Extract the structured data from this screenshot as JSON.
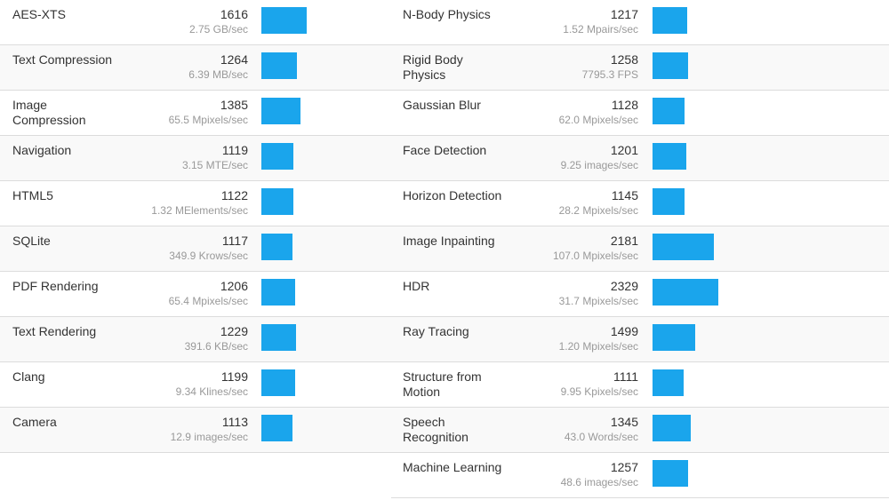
{
  "theme": {
    "bar_color": "#1aa5ec",
    "row_alt": "#f9f9f9",
    "divider": "#dcdcdc"
  },
  "bar_scale": {
    "max_score": 2329
  },
  "left_rows": [
    {
      "name": "AES-XTS",
      "score": "1616",
      "unit": "2.75 GB/sec"
    },
    {
      "name": "Text Compression",
      "score": "1264",
      "unit": "6.39 MB/sec"
    },
    {
      "name": "Image\nCompression",
      "score": "1385",
      "unit": "65.5 Mpixels/sec"
    },
    {
      "name": "Navigation",
      "score": "1119",
      "unit": "3.15 MTE/sec"
    },
    {
      "name": "HTML5",
      "score": "1122",
      "unit": "1.32 MElements/sec"
    },
    {
      "name": "SQLite",
      "score": "1117",
      "unit": "349.9 Krows/sec"
    },
    {
      "name": "PDF Rendering",
      "score": "1206",
      "unit": "65.4 Mpixels/sec"
    },
    {
      "name": "Text Rendering",
      "score": "1229",
      "unit": "391.6 KB/sec"
    },
    {
      "name": "Clang",
      "score": "1199",
      "unit": "9.34 Klines/sec"
    },
    {
      "name": "Camera",
      "score": "1113",
      "unit": "12.9 images/sec"
    }
  ],
  "right_rows": [
    {
      "name": "N-Body Physics",
      "score": "1217",
      "unit": "1.52 Mpairs/sec"
    },
    {
      "name": "Rigid Body\nPhysics",
      "score": "1258",
      "unit": "7795.3 FPS"
    },
    {
      "name": "Gaussian Blur",
      "score": "1128",
      "unit": "62.0 Mpixels/sec"
    },
    {
      "name": "Face Detection",
      "score": "1201",
      "unit": "9.25 images/sec"
    },
    {
      "name": "Horizon Detection",
      "score": "1145",
      "unit": "28.2 Mpixels/sec"
    },
    {
      "name": "Image Inpainting",
      "score": "2181",
      "unit": "107.0 Mpixels/sec"
    },
    {
      "name": "HDR",
      "score": "2329",
      "unit": "31.7 Mpixels/sec"
    },
    {
      "name": "Ray Tracing",
      "score": "1499",
      "unit": "1.20 Mpixels/sec"
    },
    {
      "name": "Structure from\nMotion",
      "score": "1111",
      "unit": "9.95 Kpixels/sec"
    },
    {
      "name": "Speech\nRecognition",
      "score": "1345",
      "unit": "43.0 Words/sec"
    },
    {
      "name": "Machine Learning",
      "score": "1257",
      "unit": "48.6 images/sec"
    }
  ]
}
